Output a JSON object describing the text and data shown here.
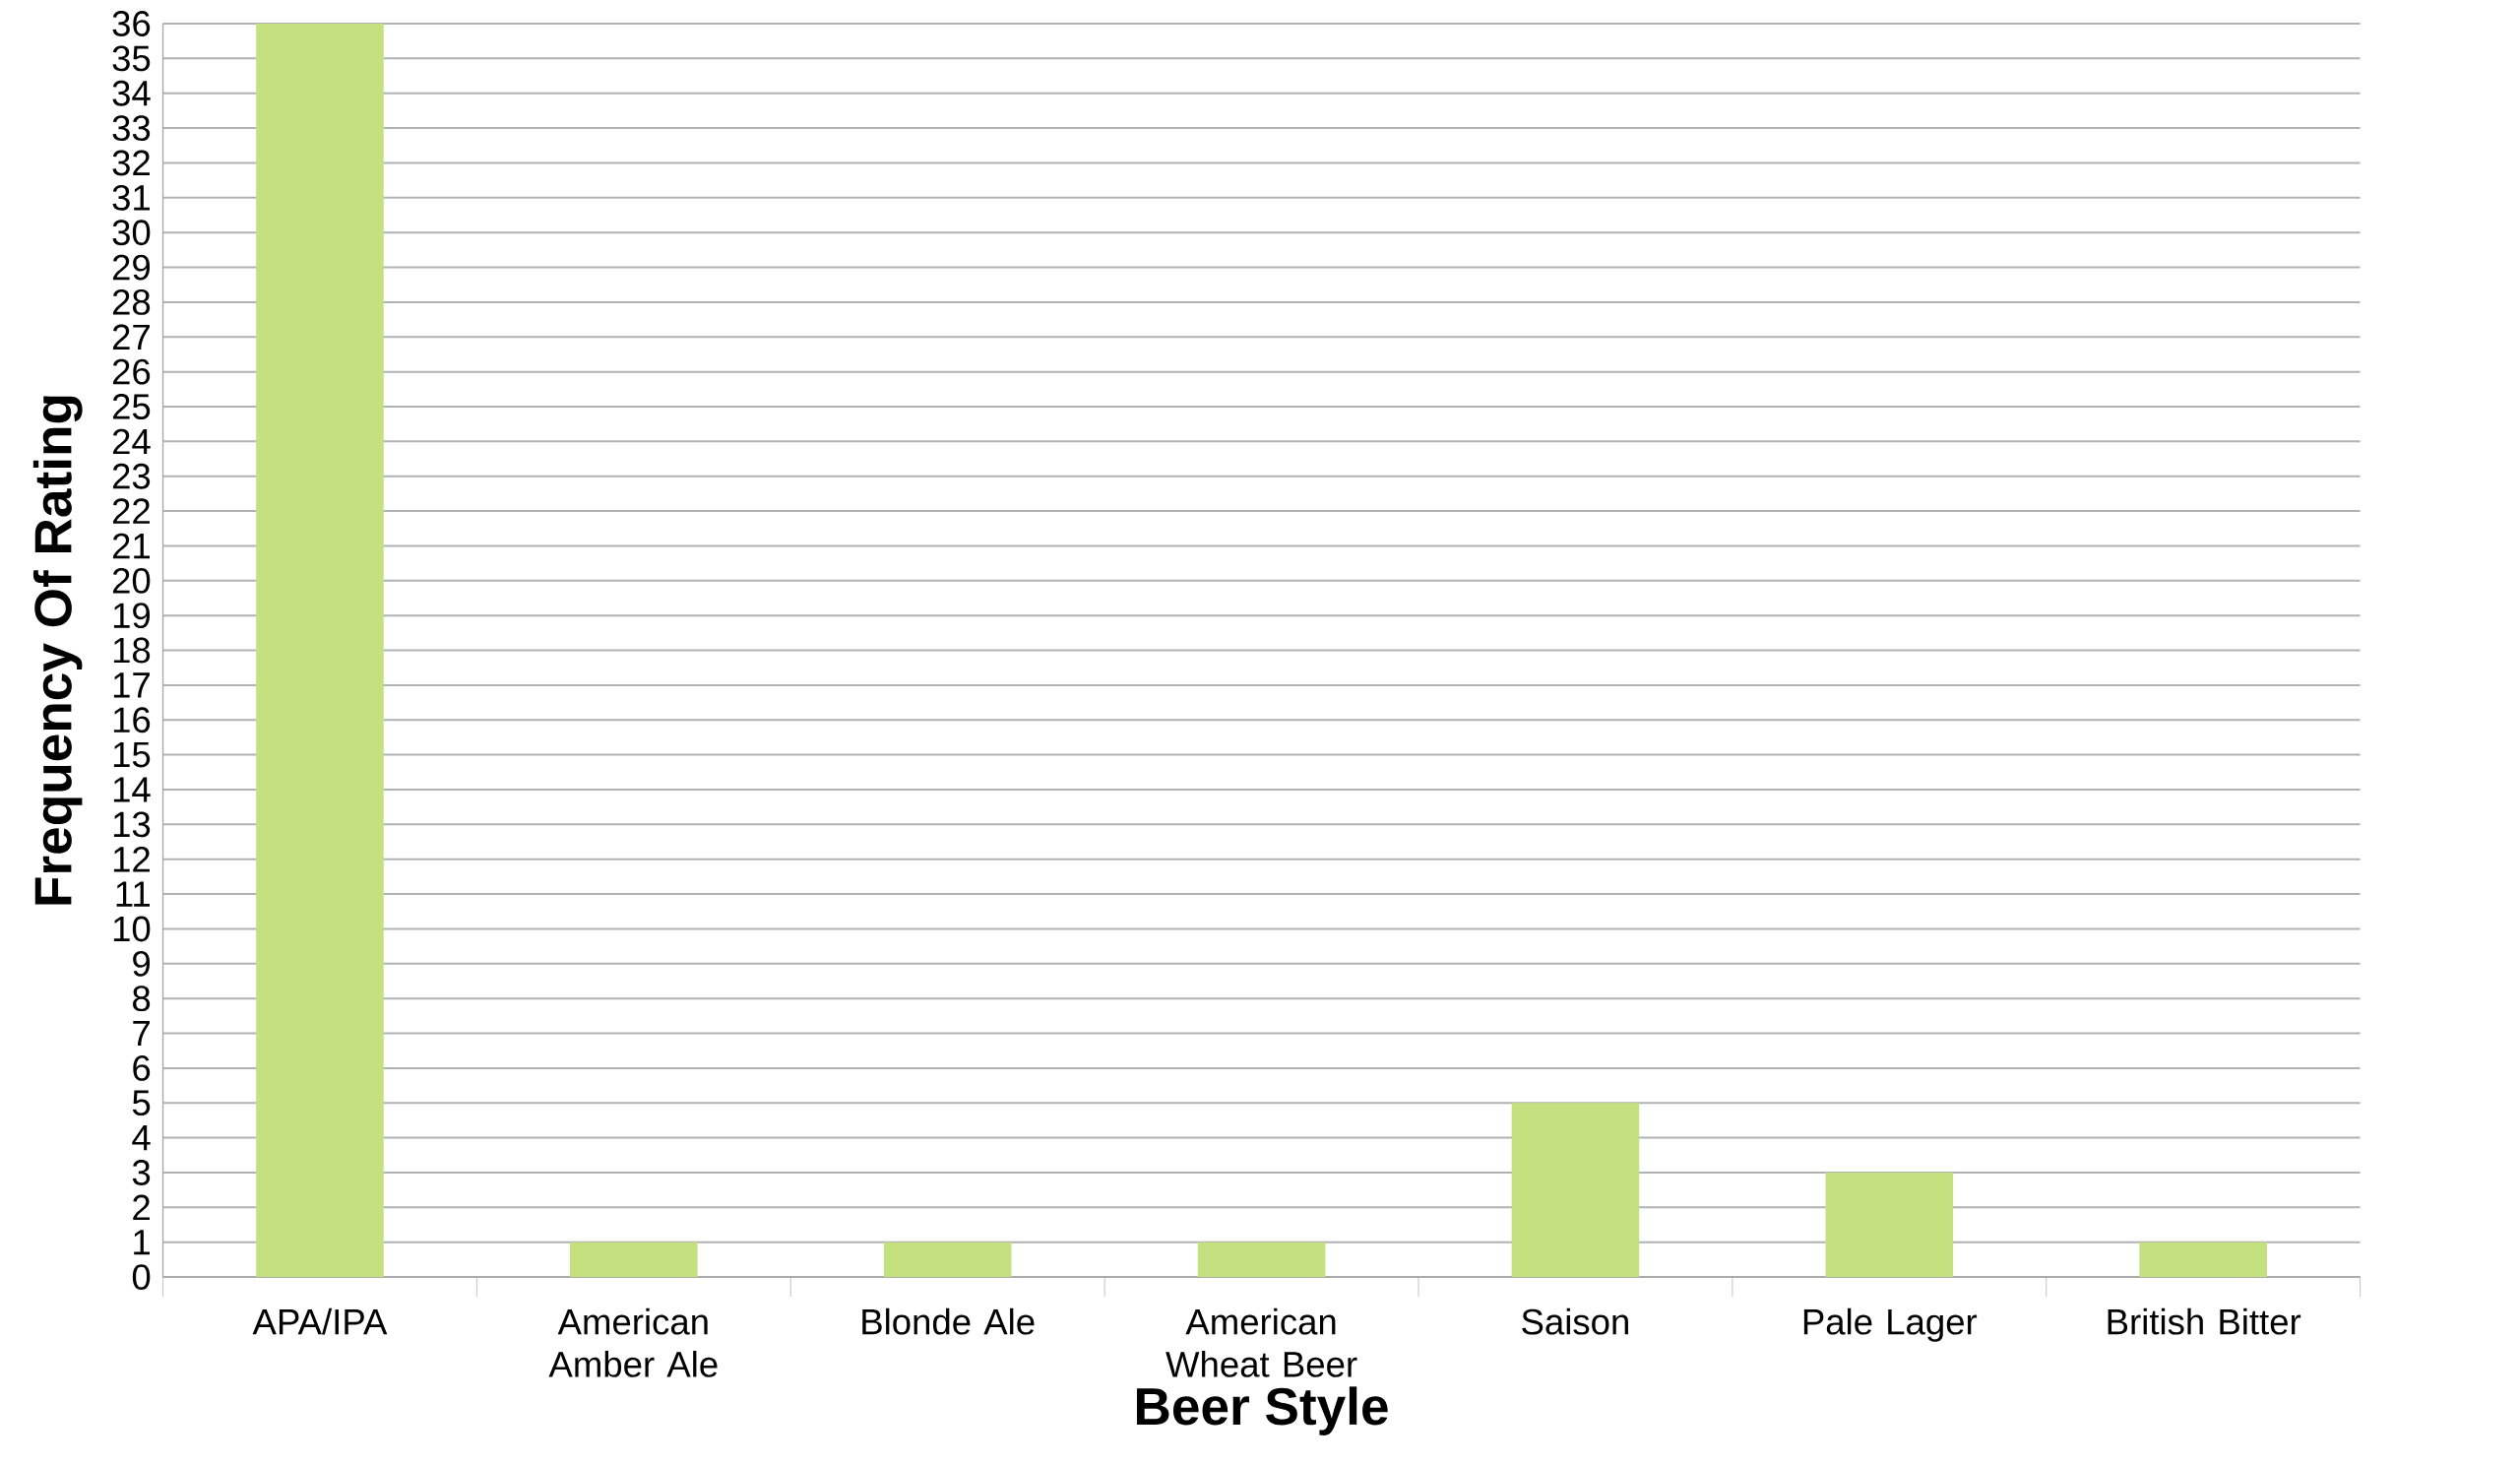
{
  "chart_data": {
    "type": "bar",
    "xlabel": "Beer Style",
    "ylabel": "Frequency Of Rating",
    "categories": [
      "APA/IPA",
      "American Amber Ale",
      "Blonde Ale",
      "American Wheat Beer",
      "Saison",
      "Pale Lager",
      "British Bitter"
    ],
    "values": [
      36,
      1,
      1,
      1,
      5,
      3,
      1
    ],
    "color": "#c4e07f",
    "ylim": [
      0,
      36
    ],
    "yticks": [
      0,
      1,
      2,
      3,
      4,
      5,
      6,
      7,
      8,
      9,
      10,
      11,
      12,
      13,
      14,
      15,
      16,
      17,
      18,
      19,
      20,
      21,
      22,
      23,
      24,
      25,
      26,
      27,
      28,
      29,
      30,
      31,
      32,
      33,
      34,
      35,
      36
    ],
    "grid": "y"
  }
}
